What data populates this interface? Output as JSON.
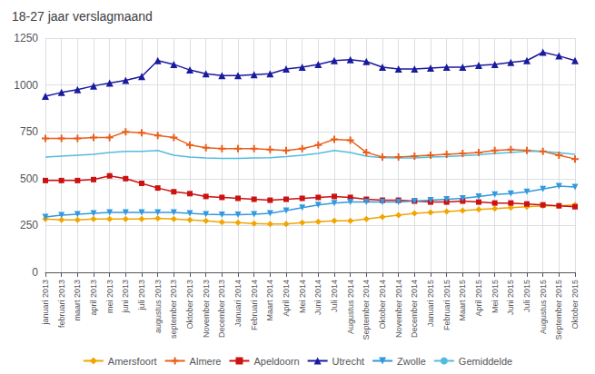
{
  "chart_data": {
    "type": "line",
    "title": "18-27 jaar verslagmaand",
    "categories": [
      "januari 2013",
      "februari 2013",
      "maart 2013",
      "april 2013",
      "mei 2013",
      "juni 2013",
      "juli 2013",
      "augustus 2013",
      "september 2013",
      "Oktober 2013",
      "November 2013",
      "December 2013",
      "Januari 2014",
      "Februari 2014",
      "Maart 2014",
      "April 2014",
      "Mei 2014",
      "Juni 2014",
      "Juli 2014",
      "Augustus 2014",
      "September 2014",
      "Oktober 2014",
      "November 2014",
      "December 2014",
      "Januari 2015",
      "Februari 2015",
      "Maart 2015",
      "April 2015",
      "Mei 2015",
      "Juni 2015",
      "Juli 2015",
      "Augustus 2015",
      "September 2015",
      "Oktober 2015"
    ],
    "series": [
      {
        "name": "Amersfoort",
        "color": "#f0a500",
        "marker": "diamond",
        "values": [
          285,
          280,
          280,
          285,
          285,
          285,
          285,
          288,
          285,
          280,
          275,
          268,
          265,
          260,
          258,
          258,
          265,
          270,
          275,
          275,
          285,
          295,
          305,
          315,
          320,
          325,
          330,
          335,
          340,
          345,
          350,
          355,
          355,
          360
        ]
      },
      {
        "name": "Almere",
        "color": "#e8601c",
        "marker": "plus",
        "values": [
          715,
          715,
          715,
          720,
          720,
          750,
          745,
          730,
          720,
          680,
          665,
          660,
          660,
          660,
          655,
          650,
          660,
          680,
          710,
          705,
          640,
          615,
          615,
          620,
          625,
          630,
          635,
          640,
          650,
          655,
          650,
          645,
          625,
          605
        ]
      },
      {
        "name": "Apeldoorn",
        "color": "#cc1111",
        "marker": "square",
        "values": [
          490,
          490,
          490,
          495,
          515,
          500,
          475,
          450,
          430,
          420,
          405,
          400,
          395,
          390,
          385,
          390,
          395,
          400,
          405,
          400,
          390,
          385,
          385,
          380,
          375,
          375,
          380,
          375,
          370,
          370,
          365,
          360,
          355,
          350
        ]
      },
      {
        "name": "Utrecht",
        "color": "#1a1a9e",
        "marker": "triangle",
        "values": [
          940,
          960,
          975,
          995,
          1010,
          1025,
          1045,
          1130,
          1110,
          1080,
          1060,
          1050,
          1050,
          1055,
          1060,
          1085,
          1095,
          1110,
          1130,
          1135,
          1125,
          1095,
          1085,
          1085,
          1090,
          1095,
          1095,
          1105,
          1110,
          1120,
          1130,
          1175,
          1155,
          1130
        ]
      },
      {
        "name": "Zwolle",
        "color": "#3399dd",
        "marker": "triangle-down",
        "values": [
          295,
          305,
          310,
          315,
          320,
          320,
          320,
          320,
          320,
          315,
          310,
          308,
          308,
          310,
          315,
          330,
          345,
          360,
          370,
          375,
          375,
          375,
          375,
          380,
          385,
          390,
          395,
          405,
          415,
          420,
          430,
          445,
          460,
          455
        ]
      },
      {
        "name": "Gemiddelde",
        "color": "#55bbdd",
        "marker": "none",
        "values": [
          615,
          620,
          625,
          630,
          640,
          645,
          645,
          650,
          625,
          615,
          610,
          608,
          608,
          610,
          612,
          618,
          625,
          635,
          650,
          640,
          620,
          612,
          610,
          610,
          615,
          618,
          622,
          628,
          635,
          640,
          645,
          645,
          638,
          630
        ]
      }
    ],
    "ylim": [
      0,
      1250
    ],
    "yticks": [
      0,
      250,
      500,
      750,
      1000,
      1250
    ],
    "grid": true,
    "legend": "bottom"
  }
}
